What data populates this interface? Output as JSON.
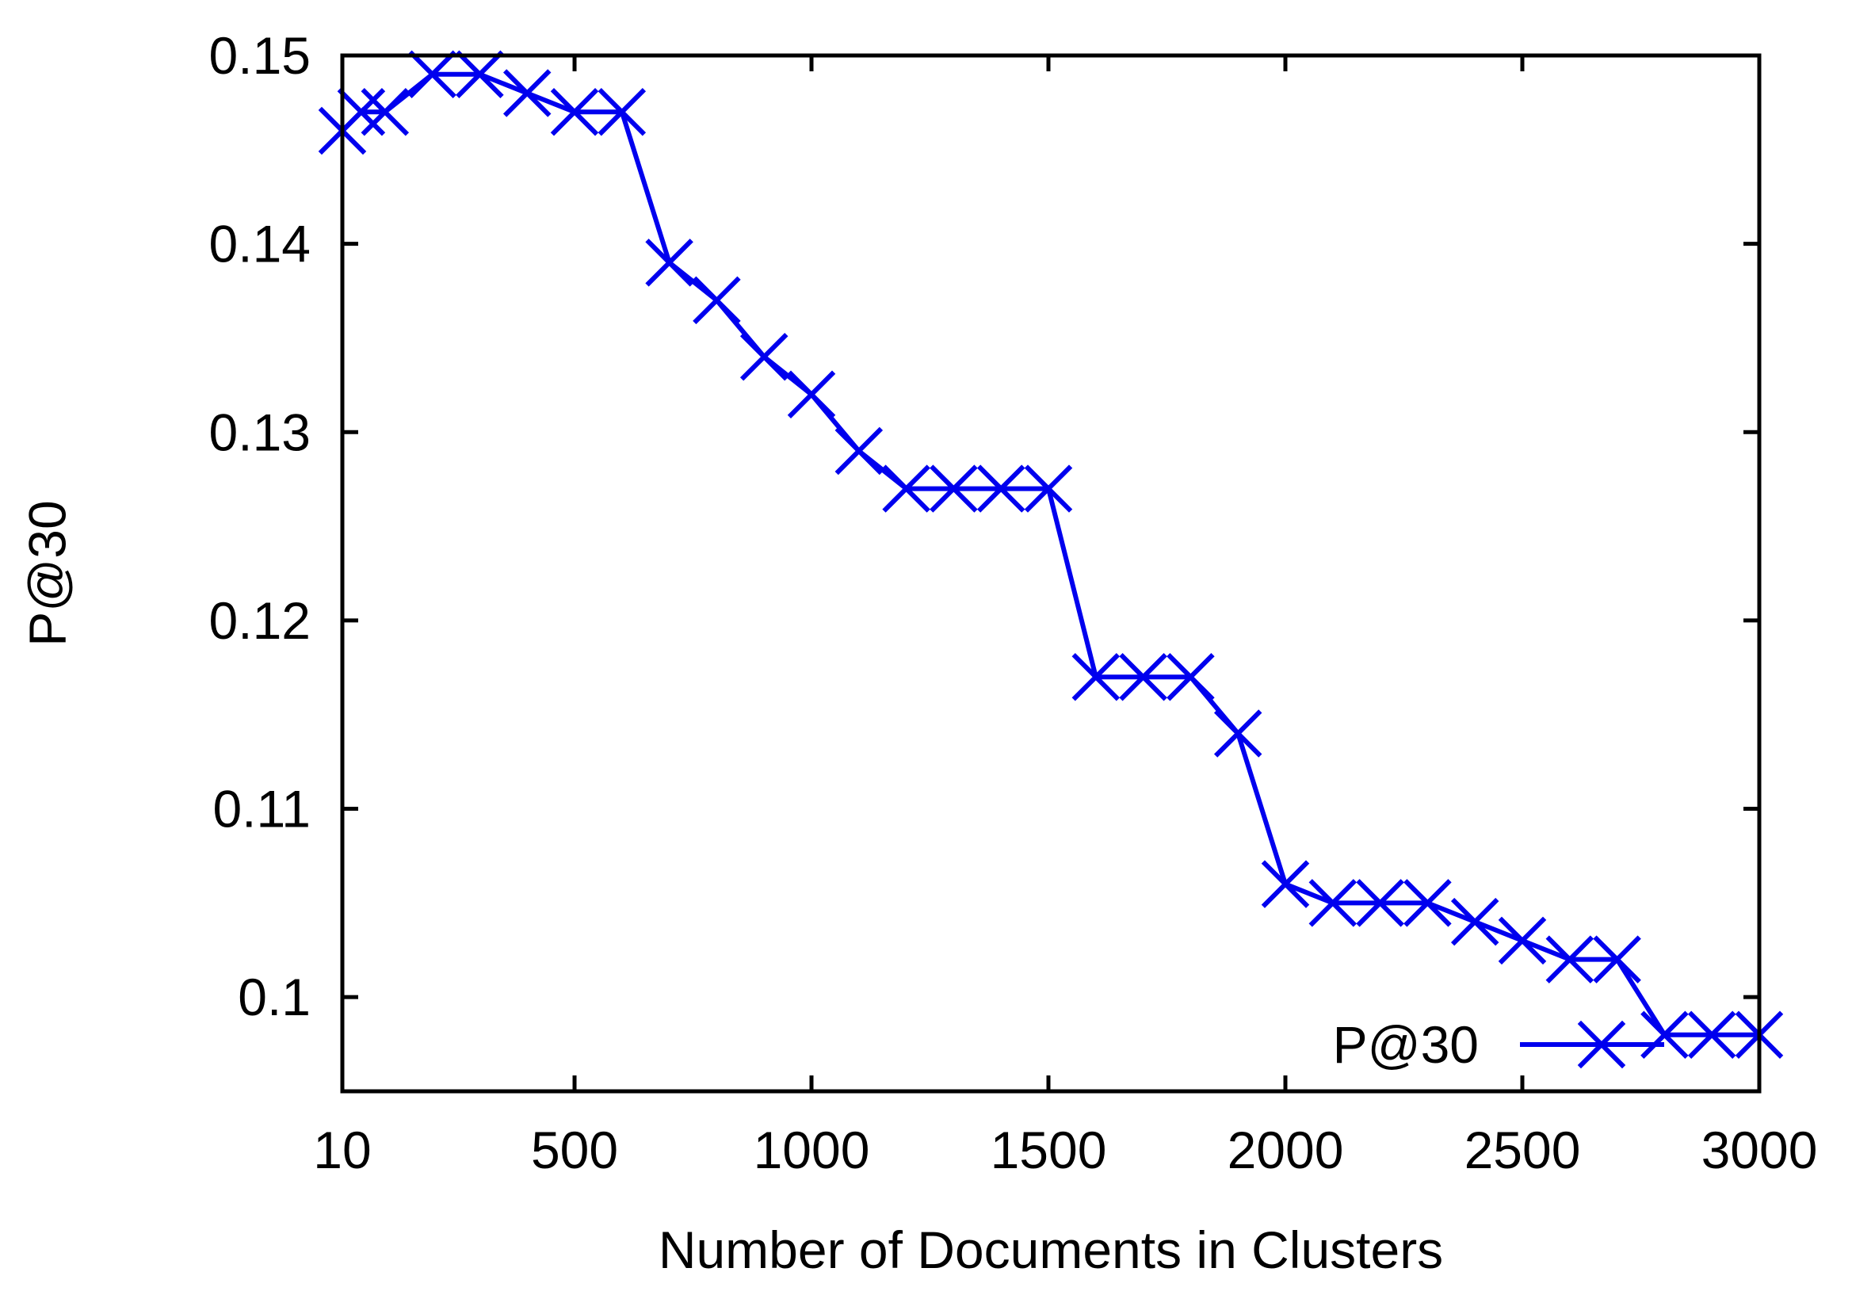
{
  "chart_data": {
    "type": "line",
    "title": "",
    "xlabel": "Number of Documents in Clusters",
    "ylabel": "P@30",
    "xlim": [
      10,
      3000
    ],
    "ylim": [
      0.095,
      0.15
    ],
    "x_ticks": [
      {
        "value": 10,
        "label": "10"
      },
      {
        "value": 500,
        "label": "500"
      },
      {
        "value": 1000,
        "label": "1000"
      },
      {
        "value": 1500,
        "label": "1500"
      },
      {
        "value": 2000,
        "label": "2000"
      },
      {
        "value": 2500,
        "label": "2500"
      },
      {
        "value": 3000,
        "label": "3000"
      }
    ],
    "y_ticks": [
      {
        "value": 0.1,
        "label": "0.1"
      },
      {
        "value": 0.11,
        "label": "0.11"
      },
      {
        "value": 0.12,
        "label": "0.12"
      },
      {
        "value": 0.13,
        "label": "0.13"
      },
      {
        "value": 0.14,
        "label": "0.14"
      },
      {
        "value": 0.15,
        "label": "0.15"
      }
    ],
    "grid": false,
    "legend_position": "bottom-right",
    "series": [
      {
        "name": "P@30",
        "color": "#0000ee",
        "marker": "x",
        "x": [
          10,
          50,
          100,
          200,
          300,
          400,
          500,
          600,
          700,
          800,
          900,
          1000,
          1100,
          1200,
          1300,
          1400,
          1500,
          1600,
          1700,
          1800,
          1900,
          2000,
          2100,
          2200,
          2300,
          2400,
          2500,
          2600,
          2700,
          2800,
          2900,
          3000
        ],
        "y": [
          0.146,
          0.147,
          0.147,
          0.149,
          0.149,
          0.148,
          0.147,
          0.147,
          0.139,
          0.137,
          0.134,
          0.132,
          0.129,
          0.127,
          0.127,
          0.127,
          0.127,
          0.117,
          0.117,
          0.117,
          0.114,
          0.106,
          0.105,
          0.105,
          0.105,
          0.104,
          0.103,
          0.102,
          0.102,
          0.098,
          0.098,
          0.098
        ]
      }
    ]
  }
}
